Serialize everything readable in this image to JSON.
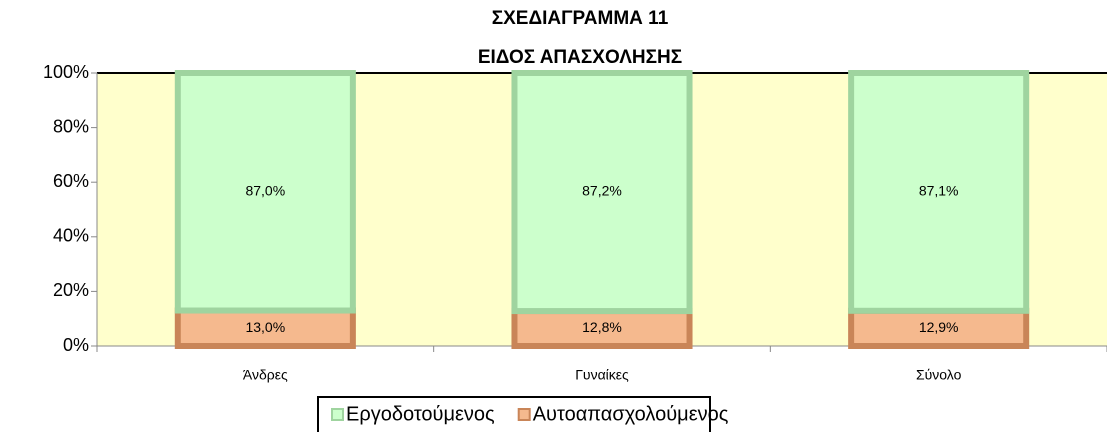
{
  "chart_data": {
    "type": "stacked_bar",
    "title": "ΣΧΕΔΙΑΓΡΑΜΜΑ 11",
    "subtitle": "ΕΙΔΟΣ ΑΠΑΣΧΟΛΗΣΗΣ",
    "categories": [
      "Άνδρες",
      "Γυναίκες",
      "Σύνολο"
    ],
    "series": [
      {
        "name": "Εργοδοτούμενος",
        "color": "#ccffcc",
        "values": [
          87.0,
          87.2,
          87.1
        ],
        "value_labels": [
          "87,0%",
          "87,2%",
          "87,1%"
        ]
      },
      {
        "name": "Αυτοαπασχολούμενος",
        "color": "#f5b98e",
        "values": [
          13.0,
          12.8,
          12.9
        ],
        "value_labels": [
          "13,0%",
          "12,8%",
          "12,9%"
        ]
      }
    ],
    "ylim": [
      0,
      100
    ],
    "yticks": [
      {
        "value": 0,
        "label": "0%"
      },
      {
        "value": 20,
        "label": "20%"
      },
      {
        "value": 40,
        "label": "40%"
      },
      {
        "value": 60,
        "label": "60%"
      },
      {
        "value": 80,
        "label": "80%"
      },
      {
        "value": 100,
        "label": "100%"
      }
    ],
    "plot_background": "#ffffcc",
    "legend": "bottom"
  }
}
